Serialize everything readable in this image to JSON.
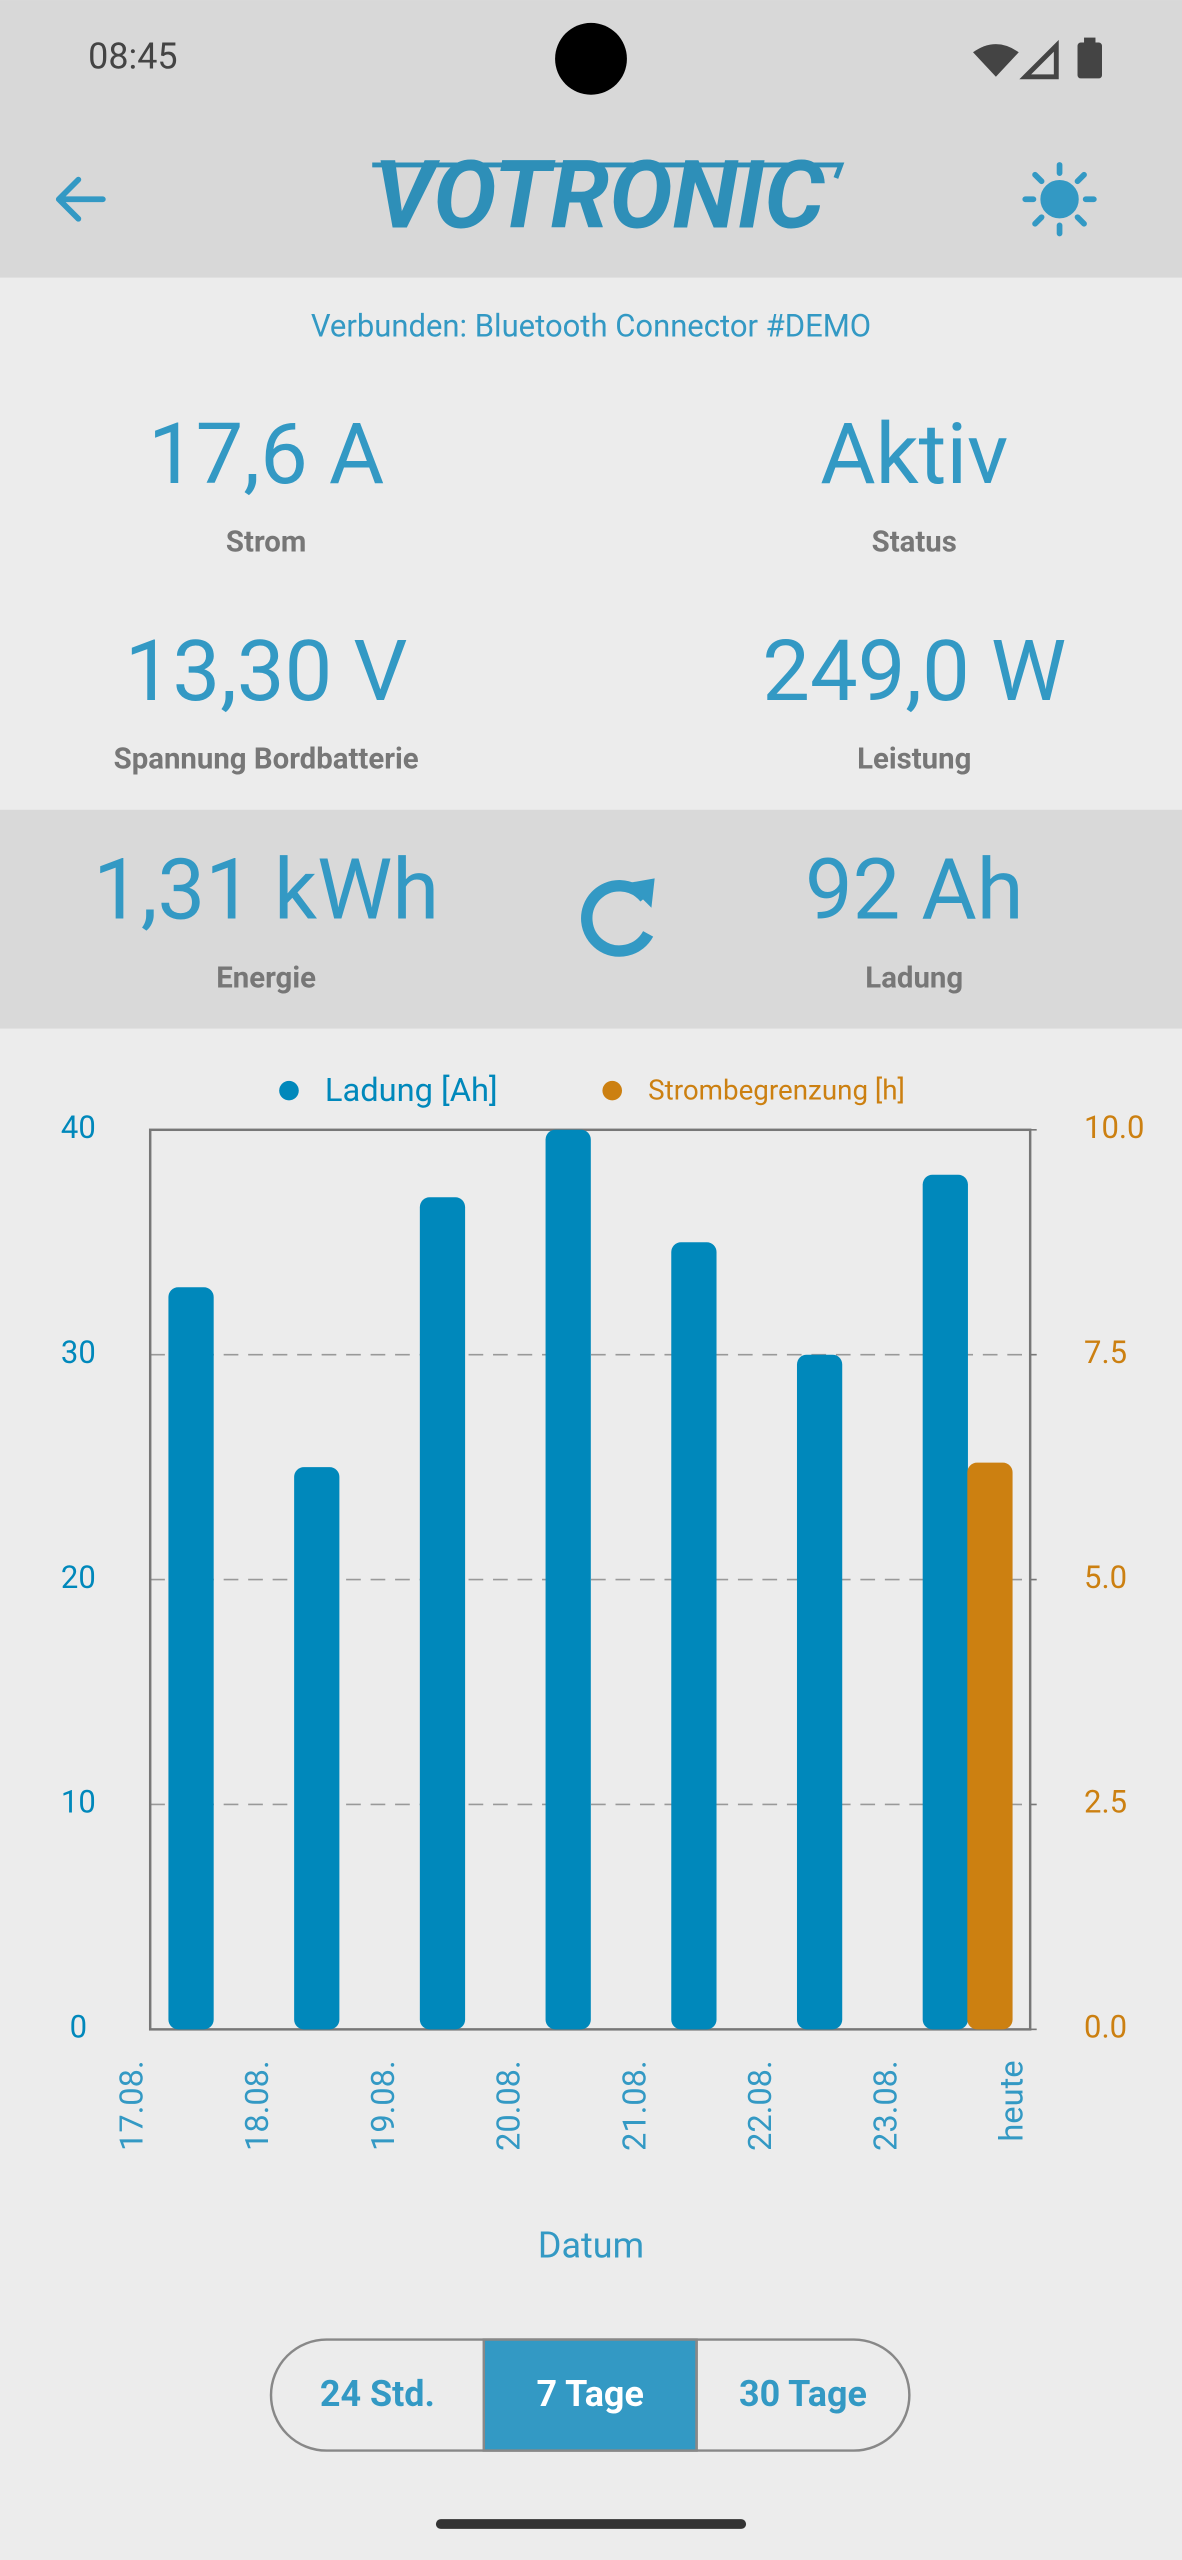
{
  "status_bar": {
    "time": "08:45"
  },
  "header": {
    "brand": "VOTRONIC"
  },
  "connection": "Verbunden: Bluetooth Connector #DEMO",
  "metrics": [
    {
      "value": "17,6 A",
      "label": "Strom"
    },
    {
      "value": "Aktiv",
      "label": "Status"
    },
    {
      "value": "13,30 V",
      "label": "Spannung Bordbatterie"
    },
    {
      "value": "249,0 W",
      "label": "Leistung"
    },
    {
      "value": "1,31 kWh",
      "label": "Energie"
    },
    {
      "value": "92 Ah",
      "label": "Ladung"
    }
  ],
  "chart_data": {
    "type": "bar",
    "categories": [
      "17.08.",
      "18.08.",
      "19.08.",
      "20.08.",
      "21.08.",
      "22.08.",
      "23.08.",
      "heute"
    ],
    "series": [
      {
        "name": "Ladung [Ah]",
        "color": "#0088bb",
        "values": [
          33,
          25,
          37,
          40,
          35,
          30,
          38,
          null
        ]
      },
      {
        "name": "Strombegrenzung [h]",
        "color": "#cc8011",
        "axis": "y2",
        "values": [
          0,
          0,
          0,
          0,
          0,
          0,
          6.3,
          null
        ]
      }
    ],
    "ylim": [
      0,
      40
    ],
    "yticks": [
      0,
      10,
      20,
      30,
      40
    ],
    "y2lim": [
      0,
      10
    ],
    "y2ticks": [
      {
        "value": 0,
        "label": "0.0"
      },
      2.5,
      {
        "value": 5,
        "label": "5.0"
      },
      7.5,
      {
        "value": 10,
        "label": "10.0"
      }
    ],
    "grid": true,
    "xlabel": "Datum"
  },
  "range_buttons": {
    "options": [
      "24 Std.",
      "7 Tage",
      "30 Tage"
    ],
    "selected": 1
  }
}
